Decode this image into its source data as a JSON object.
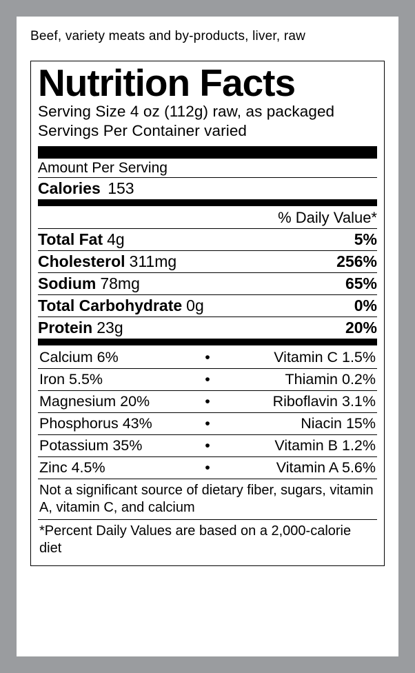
{
  "product_title": "Beef, variety meats and by-products, liver, raw",
  "panel": {
    "title": "Nutrition Facts",
    "serving_size_line": "Serving Size 4 oz (112g) raw, as packaged",
    "servings_per_line": "Servings Per Container varied",
    "amount_per": "Amount Per Serving",
    "calories_label": "Calories",
    "calories_value": "153",
    "dv_header": "% Daily Value*",
    "nutrients": [
      {
        "name": "Total Fat",
        "amount": "4g",
        "pct": "5%"
      },
      {
        "name": "Cholesterol",
        "amount": "311mg",
        "pct": "256%"
      },
      {
        "name": "Sodium",
        "amount": "78mg",
        "pct": "65%"
      },
      {
        "name": "Total Carbohydrate",
        "amount": "0g",
        "pct": "0%"
      },
      {
        "name": "Protein",
        "amount": "23g",
        "pct": "20%"
      }
    ],
    "vitamins": [
      {
        "l": "Calcium 6%",
        "r": "Vitamin C 1.5%"
      },
      {
        "l": "Iron 5.5%",
        "r": "Thiamin 0.2%"
      },
      {
        "l": "Magnesium 20%",
        "r": "Riboflavin 3.1%"
      },
      {
        "l": "Phosphorus 43%",
        "r": "Niacin 15%"
      },
      {
        "l": "Potassium 35%",
        "r": "Vitamin B 1.2%"
      },
      {
        "l": "Zinc 4.5%",
        "r": "Vitamin A 5.6%"
      }
    ],
    "footnote1": "Not a significant source of dietary fiber, sugars, vitamin A, vitamin C, and calcium",
    "footnote2": "*Percent Daily Values are based on a 2,000-calorie diet",
    "bullet": "•",
    "colors": {
      "fg": "#000000",
      "bg": "#ffffff",
      "frame": "#9a9c9f"
    }
  }
}
